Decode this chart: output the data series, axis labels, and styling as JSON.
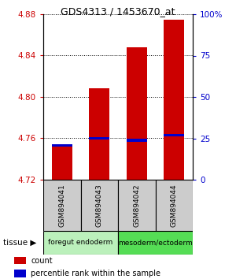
{
  "title": "GDS4313 / 1453670_at",
  "samples": [
    "GSM894041",
    "GSM894043",
    "GSM894042",
    "GSM894044"
  ],
  "bar_bottom": 4.72,
  "red_bar_tops": [
    4.753,
    4.808,
    4.848,
    4.875
  ],
  "blue_marker_vals": [
    4.753,
    4.76,
    4.758,
    4.763
  ],
  "ylim": [
    4.72,
    4.88
  ],
  "yticks_left": [
    4.72,
    4.76,
    4.8,
    4.84,
    4.88
  ],
  "yticks_right": [
    0,
    25,
    50,
    75,
    100
  ],
  "ytick_right_labels": [
    "0",
    "25",
    "50",
    "75",
    "100%"
  ],
  "groups": [
    {
      "label": "foregut endoderm",
      "indices": [
        0,
        1
      ],
      "color": "#bbf0bb"
    },
    {
      "label": "mesoderm/ectoderm",
      "indices": [
        2,
        3
      ],
      "color": "#55dd55"
    }
  ],
  "sample_box_color": "#cccccc",
  "bar_color": "#cc0000",
  "marker_color": "#0000cc",
  "left_axis_color": "#cc0000",
  "right_axis_color": "#0000cc",
  "legend_items": [
    {
      "label": "count",
      "color": "#cc0000"
    },
    {
      "label": "percentile rank within the sample",
      "color": "#0000cc"
    }
  ],
  "tissue_label": "tissue",
  "figsize": [
    3.0,
    3.54
  ],
  "dpi": 100
}
